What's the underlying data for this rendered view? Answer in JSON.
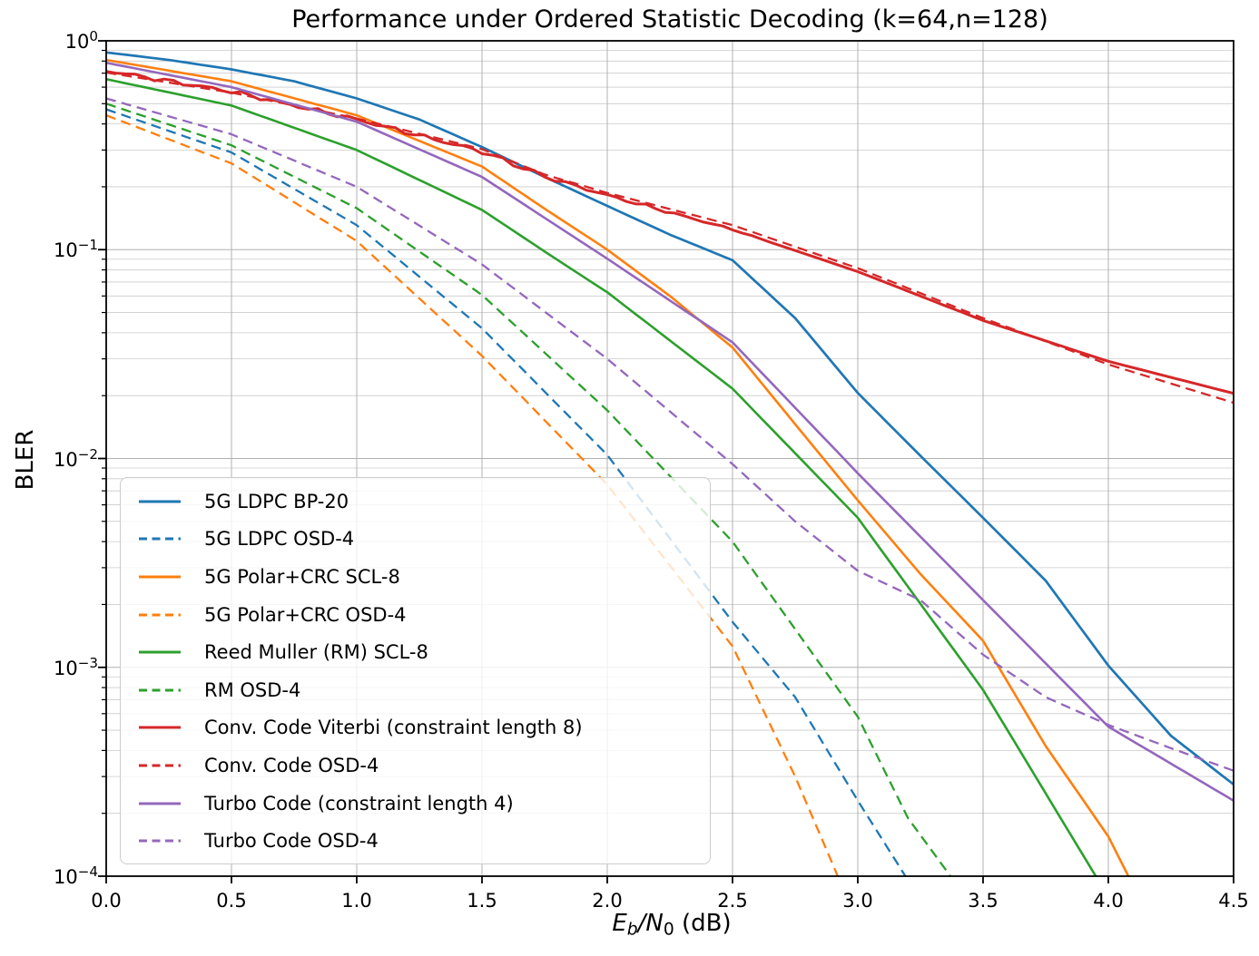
{
  "figure": {
    "title": "Performance under Ordered Statistic Decoding (k=64,n=128)",
    "background": "#ffffff"
  },
  "chart_data": {
    "type": "line",
    "title": "Performance under Ordered Statistic Decoding (k=64,n=128)",
    "xlabel_plain": "Eb/N0 (dB)",
    "xlabel_parts": [
      {
        "text": "E",
        "style": "italic"
      },
      {
        "text": "b",
        "style": "italic-sub"
      },
      {
        "text": "/",
        "style": "italic"
      },
      {
        "text": "N",
        "style": "italic"
      },
      {
        "text": "0",
        "style": "sub"
      },
      {
        "text": " (dB)",
        "style": "normal"
      }
    ],
    "ylabel": "BLER",
    "xscale": "linear",
    "yscale": "log",
    "xlim": [
      0.0,
      4.5
    ],
    "ylim": [
      0.0001,
      1.0
    ],
    "grid": "both-major-and-log-minor",
    "grid_color": "#b0b0b0",
    "legend_position": "lower-left",
    "xticks": {
      "values": [
        0.0,
        0.5,
        1.0,
        1.5,
        2.0,
        2.5,
        3.0,
        3.5,
        4.0,
        4.5
      ],
      "labels": [
        "0.0",
        "0.5",
        "1.0",
        "1.5",
        "2.0",
        "2.5",
        "3.0",
        "3.5",
        "4.0",
        "4.5"
      ]
    },
    "yticks": {
      "values": [
        1.0,
        0.1,
        0.01,
        0.001,
        0.0001
      ],
      "labels": [
        {
          "base": "10",
          "exp": "0"
        },
        {
          "base": "10",
          "exp": "−1"
        },
        {
          "base": "10",
          "exp": "−2"
        },
        {
          "base": "10",
          "exp": "−3"
        },
        {
          "base": "10",
          "exp": "−4"
        }
      ]
    },
    "series": [
      {
        "id": "ldpc-bp",
        "label": "5G LDPC BP-20",
        "color": "#1f77b4",
        "style": "solid",
        "width": 2.7,
        "x": [
          0,
          0.25,
          0.5,
          0.75,
          1.0,
          1.25,
          1.5,
          1.75,
          2.0,
          2.25,
          2.5,
          2.75,
          3.0,
          3.25,
          3.5,
          3.75,
          4.0,
          4.25,
          4.5
        ],
        "y": [
          0.88,
          0.81,
          0.73,
          0.64,
          0.53,
          0.42,
          0.31,
          0.223,
          0.162,
          0.118,
          0.089,
          0.047,
          0.0206,
          0.0103,
          0.0052,
          0.0026,
          0.00102,
          0.00047,
          0.000275
        ]
      },
      {
        "id": "ldpc-osd",
        "label": "5G LDPC OSD-4",
        "color": "#1f77b4",
        "style": "dashed",
        "width": 2.3,
        "x": [
          0,
          0.5,
          1.0,
          1.5,
          2.0,
          2.5,
          2.75,
          3.0,
          3.19
        ],
        "y": [
          0.47,
          0.292,
          0.131,
          0.042,
          0.0104,
          0.00165,
          0.00072,
          0.00023,
          0.0001
        ]
      },
      {
        "id": "polar-scl",
        "label": "5G Polar+CRC SCL-8",
        "color": "#ff7f0e",
        "style": "solid",
        "width": 2.6,
        "x": [
          0,
          0.5,
          1.0,
          1.5,
          1.75,
          2.0,
          2.25,
          2.5,
          2.75,
          3.0,
          3.25,
          3.5,
          3.75,
          4.0,
          4.08
        ],
        "y": [
          0.81,
          0.64,
          0.44,
          0.25,
          0.157,
          0.1,
          0.06,
          0.034,
          0.0146,
          0.0063,
          0.0028,
          0.00134,
          0.00042,
          0.000155,
          0.0001
        ]
      },
      {
        "id": "polar-osd",
        "label": "5G Polar+CRC OSD-4",
        "color": "#ff7f0e",
        "style": "dashed",
        "width": 2.3,
        "x": [
          0,
          0.5,
          1.0,
          1.5,
          2.0,
          2.5,
          2.75,
          2.92
        ],
        "y": [
          0.44,
          0.259,
          0.11,
          0.031,
          0.0075,
          0.00126,
          0.0003,
          0.0001
        ]
      },
      {
        "id": "rm-scl",
        "label": "Reed Muller (RM) SCL-8",
        "color": "#2ca02c",
        "style": "solid",
        "width": 2.6,
        "x": [
          0,
          0.5,
          1.0,
          1.5,
          1.75,
          2.0,
          2.5,
          3.0,
          3.5,
          3.95
        ],
        "y": [
          0.655,
          0.49,
          0.3,
          0.155,
          0.098,
          0.0625,
          0.0216,
          0.0052,
          0.00078,
          0.0001
        ]
      },
      {
        "id": "rm-osd",
        "label": "RM OSD-4",
        "color": "#2ca02c",
        "style": "dashed",
        "width": 2.3,
        "x": [
          0,
          0.5,
          1.0,
          1.5,
          2.0,
          2.5,
          3.0,
          3.2,
          3.37
        ],
        "y": [
          0.5,
          0.316,
          0.158,
          0.0607,
          0.017,
          0.004,
          0.00058,
          0.00019,
          0.0001
        ]
      },
      {
        "id": "cc-viterbi",
        "label": "Conv. Code Viterbi (constraint length 8)",
        "color": "#d62728",
        "style": "solid",
        "width": 3.0,
        "noisy": true,
        "x": [
          0,
          0.5,
          1.0,
          1.5,
          1.75,
          2.0,
          2.5,
          3.0,
          3.5,
          4.0,
          4.5
        ],
        "y": [
          0.72,
          0.572,
          0.42,
          0.295,
          0.224,
          0.182,
          0.125,
          0.0785,
          0.0458,
          0.0292,
          0.0205
        ]
      },
      {
        "id": "cc-osd",
        "label": "Conv. Code OSD-4",
        "color": "#d62728",
        "style": "dashed",
        "width": 2.3,
        "x": [
          0,
          0.5,
          1.0,
          1.5,
          1.75,
          2.0,
          2.5,
          3.0,
          3.5,
          4.0,
          4.5
        ],
        "y": [
          0.705,
          0.565,
          0.425,
          0.303,
          0.229,
          0.187,
          0.131,
          0.0815,
          0.047,
          0.0282,
          0.0185
        ]
      },
      {
        "id": "turbo",
        "label": "Turbo Code (constraint length 4)",
        "color": "#9467bd",
        "style": "solid",
        "width": 2.6,
        "x": [
          0,
          0.5,
          1.0,
          1.5,
          1.75,
          2.0,
          2.5,
          3.0,
          3.5,
          4.0,
          4.5
        ],
        "y": [
          0.785,
          0.6,
          0.41,
          0.223,
          0.142,
          0.0905,
          0.036,
          0.0085,
          0.0021,
          0.00052,
          0.00023
        ]
      },
      {
        "id": "turbo-osd",
        "label": "Turbo Code OSD-4",
        "color": "#9467bd",
        "style": "dashed",
        "width": 2.3,
        "x": [
          0,
          0.5,
          1.0,
          1.5,
          2.0,
          2.5,
          2.75,
          3.0,
          3.25,
          3.5,
          3.75,
          4.0,
          4.25,
          4.5
        ],
        "y": [
          0.53,
          0.357,
          0.2,
          0.085,
          0.03,
          0.0094,
          0.005,
          0.0029,
          0.0021,
          0.00115,
          0.00072,
          0.00053,
          0.00041,
          0.00032
        ]
      }
    ]
  }
}
